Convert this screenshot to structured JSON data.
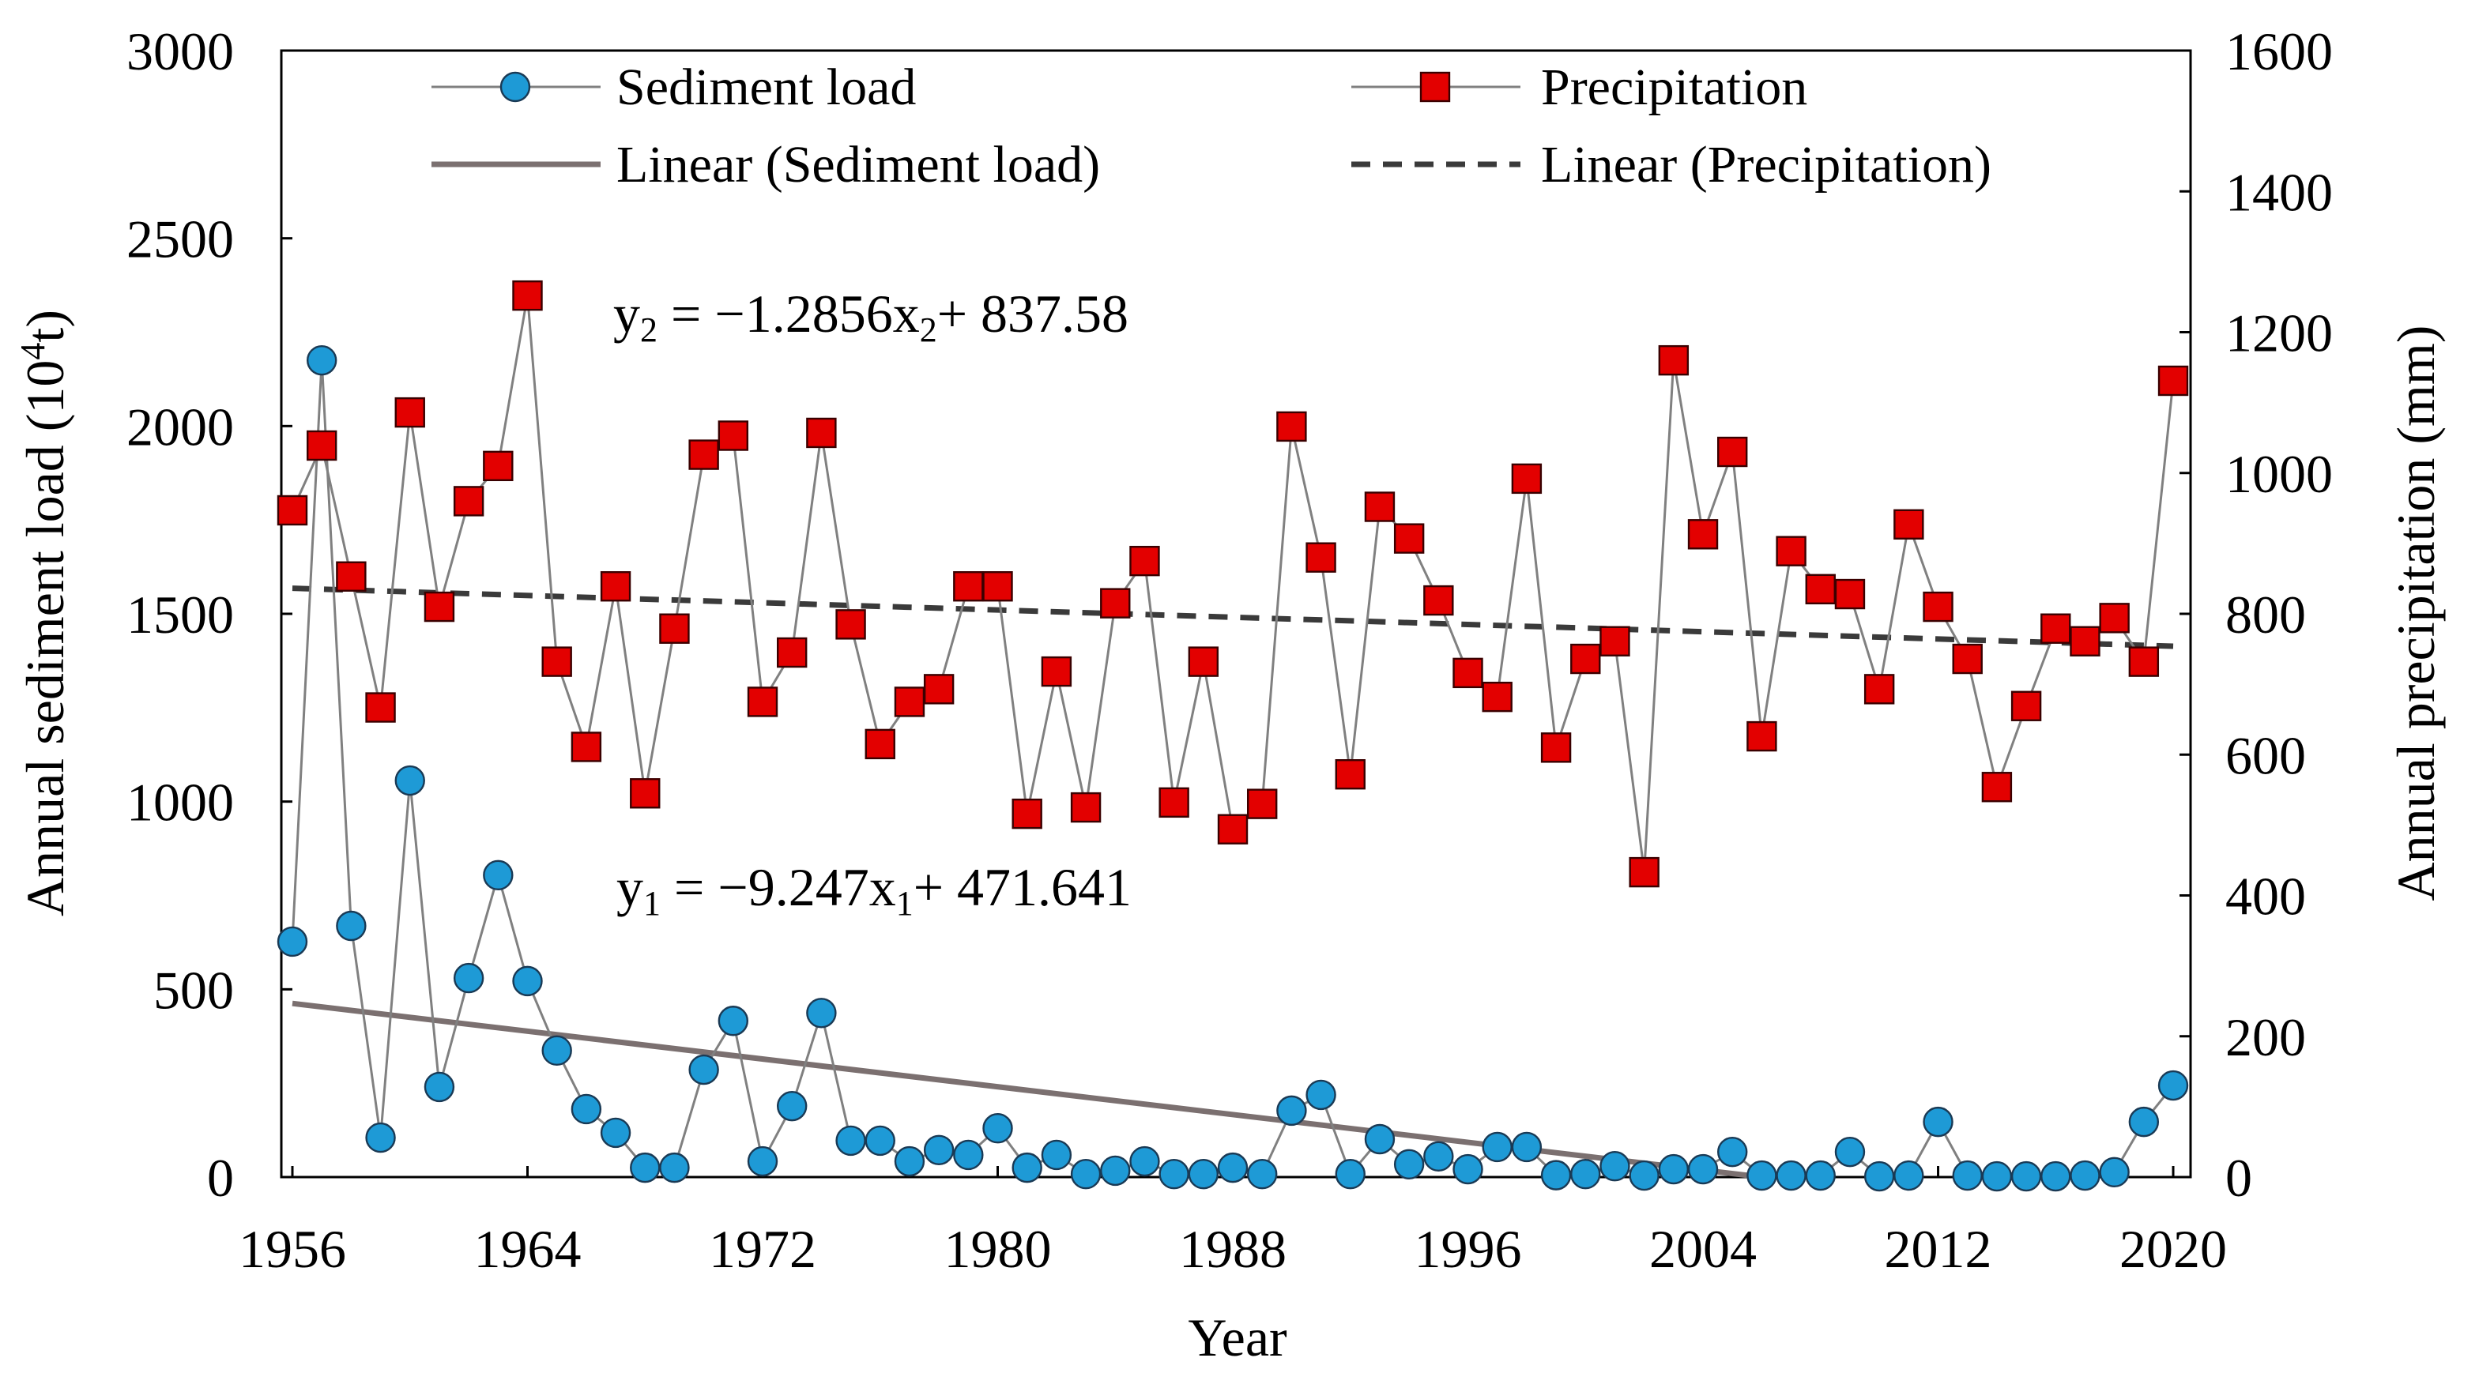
{
  "chart_data": {
    "type": "line",
    "xlabel": "Year",
    "ylabel": "Annual sediment load (10",
    "ylabel_sup": "4",
    "ylabel_end": "t)",
    "y2label": "Annual precipitation (mm)",
    "xlim": [
      1956,
      2020
    ],
    "ylim": [
      0,
      3000
    ],
    "y2lim": [
      0,
      1600
    ],
    "x_ticks": [
      "1956",
      "1964",
      "1972",
      "1980",
      "1988",
      "1996",
      "2004",
      "2012",
      "2020"
    ],
    "y_ticks": [
      "0",
      "500",
      "1000",
      "1500",
      "2000",
      "2500",
      "3000"
    ],
    "y2_ticks": [
      "0",
      "200",
      "400",
      "600",
      "800",
      "1000",
      "1200",
      "1400",
      "1600"
    ],
    "grid": false,
    "legend_position": "top",
    "legend": {
      "sediment": "Sediment load",
      "precip": "Precipitation",
      "sediment_linear": "Linear (Sediment load)",
      "precip_linear": "Linear (Precipitation)"
    },
    "colors": {
      "sediment": "#1E9AD6",
      "precip": "#E30000",
      "connector": "#808080",
      "sediment_trend": "#7B7070",
      "precip_trend": "#3A3A3A"
    },
    "years_start": 1956,
    "series": [
      {
        "name": "Sediment load",
        "axis": "left",
        "values": [
          627,
          2175,
          669,
          105,
          1056,
          240,
          530,
          804,
          522,
          337,
          181,
          118,
          25,
          25,
          286,
          416,
          42,
          189,
          437,
          97,
          97,
          42,
          72,
          59,
          130,
          25,
          59,
          8,
          17,
          42,
          8,
          8,
          25,
          8,
          177,
          219,
          8,
          101,
          34,
          55,
          21,
          80,
          80,
          5,
          8,
          29,
          4,
          21,
          21,
          67,
          4,
          4,
          4,
          67,
          2,
          4,
          147,
          4,
          2,
          2,
          2,
          4,
          13,
          147,
          244
        ]
      },
      {
        "name": "Precipitation",
        "axis": "right",
        "values": [
          947,
          1039,
          853,
          667,
          1086,
          810,
          960,
          1010,
          1252,
          732,
          611,
          839,
          545,
          779,
          1026,
          1053,
          675,
          745,
          1057,
          785,
          615,
          675,
          693,
          839,
          839,
          516,
          718,
          525,
          815,
          875,
          532,
          732,
          494,
          530,
          1066,
          880,
          572,
          952,
          907,
          819,
          716,
          682,
          992,
          610,
          736,
          761,
          433,
          1160,
          913,
          1030,
          626,
          889,
          835,
          828,
          693,
          927,
          810,
          736,
          554,
          669,
          779,
          761,
          794,
          732,
          1131
        ]
      }
    ],
    "trends": {
      "sediment": {
        "slope": -9.247,
        "intercept": 471.641,
        "x_end_index": 51
      },
      "precip": {
        "slope": -1.2856,
        "intercept": 837.58
      }
    },
    "annotations": {
      "eq2": {
        "lhs": "y",
        "lhs_sub": "2",
        "mid": " = −1.2856x",
        "x_sub": "2",
        "rhs": "+ 837.58"
      },
      "eq1": {
        "lhs": "y",
        "lhs_sub": "1",
        "mid": " = −9.247x",
        "x_sub": "1",
        "rhs": "+ 471.641"
      }
    }
  }
}
